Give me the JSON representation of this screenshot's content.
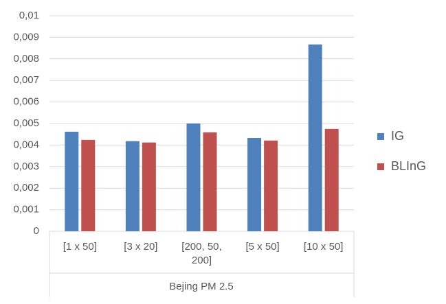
{
  "chart_data": {
    "type": "bar",
    "categories": [
      "[1 x 50]",
      "[3 x 20]",
      "[200, 50, 200]",
      "[5 x 50]",
      "[10 x 50]"
    ],
    "group_label": "Bejing PM 2.5",
    "series": [
      {
        "name": "IG",
        "color": "#4f81bd",
        "values": [
          0.00462,
          0.00418,
          0.005,
          0.00433,
          0.00867
        ]
      },
      {
        "name": "BLInG",
        "color": "#c0504d",
        "values": [
          0.00424,
          0.00412,
          0.00459,
          0.00421,
          0.00475
        ]
      }
    ],
    "ylim": [
      0,
      0.01
    ],
    "yticks": [
      0,
      {
        "value": 0.001,
        "label": "0,001"
      },
      {
        "value": 0.002,
        "label": "0,002"
      },
      {
        "value": 0.003,
        "label": "0,003"
      },
      {
        "value": 0.004,
        "label": "0,004"
      },
      {
        "value": 0.005,
        "label": "0,005"
      },
      {
        "value": 0.006,
        "label": "0,006"
      },
      {
        "value": 0.007,
        "label": "0,007"
      },
      {
        "value": 0.008,
        "label": "0,008"
      },
      {
        "value": 0.009,
        "label": "0,009"
      },
      {
        "value": 0.01,
        "label": "0,01"
      }
    ],
    "grid": true,
    "legend": "right"
  }
}
